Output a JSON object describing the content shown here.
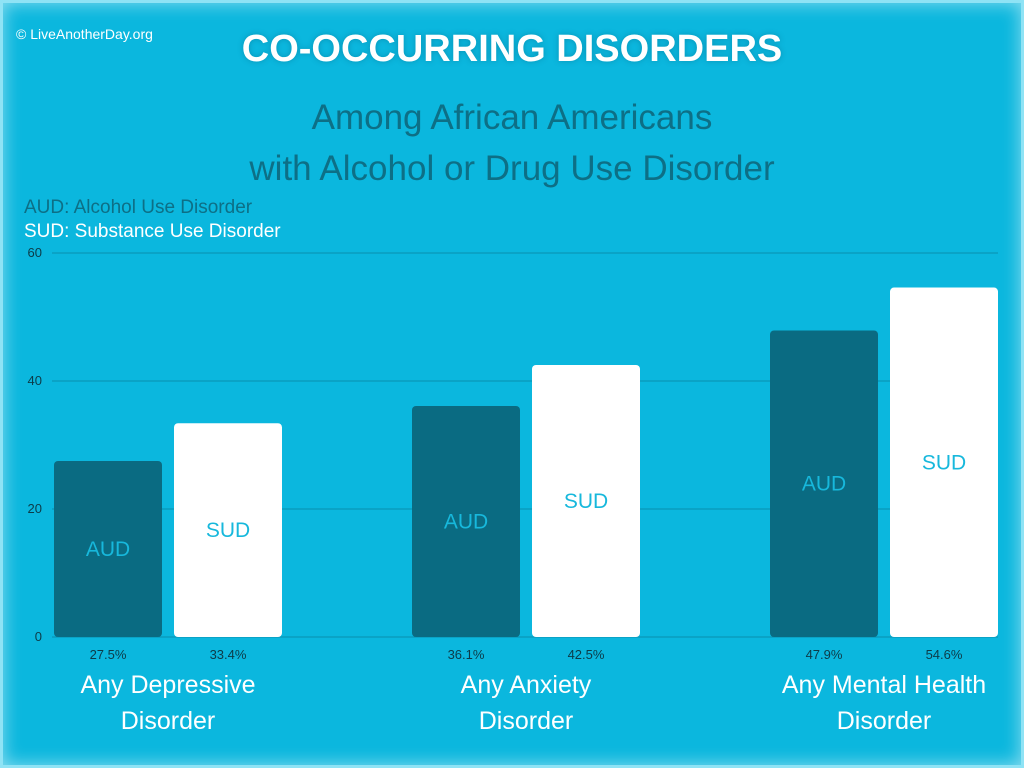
{
  "copyright": "© LiveAnotherDay.org",
  "title": "CO-OCCURRING DISORDERS",
  "subtitle_line1": "Among African Americans",
  "subtitle_line2": "with Alcohol or Drug Use Disorder",
  "legend": {
    "aud": "AUD: Alcohol Use Disorder",
    "sud": "SUD: Substance Use Disorder"
  },
  "colors": {
    "background": "#0bb7de",
    "aud_bar": "#0a6b82",
    "sud_bar": "#ffffff",
    "subtitle_text": "#0d6f86"
  },
  "chart_data": {
    "type": "bar",
    "categories": [
      [
        "Any Depressive",
        "Disorder"
      ],
      [
        "Any Anxiety",
        "Disorder"
      ],
      [
        "Any Mental Health",
        "Disorder"
      ]
    ],
    "series": [
      {
        "name": "AUD",
        "values": [
          27.5,
          36.1,
          47.9
        ],
        "labels": [
          "27.5%",
          "36.1%",
          "47.9%"
        ]
      },
      {
        "name": "SUD",
        "values": [
          33.4,
          42.5,
          54.6
        ],
        "labels": [
          "33.4%",
          "42.5%",
          "54.6%"
        ]
      }
    ],
    "ylim": [
      0,
      60
    ],
    "yticks": [
      0,
      20,
      40,
      60
    ],
    "grid": true
  }
}
